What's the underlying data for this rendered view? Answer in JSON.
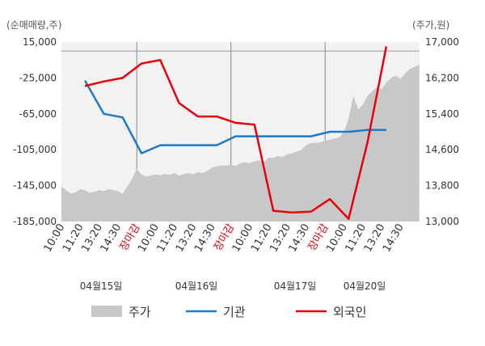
{
  "chart_data": {
    "type": "line",
    "left_unit": "(순매매량,주)",
    "right_unit": "(주가,원)",
    "left_axis": {
      "ylim": [
        -185000,
        15000
      ],
      "ticks": [
        "15,000",
        "-25,000",
        "-65,000",
        "-105,000",
        "-145,000",
        "-185,000"
      ],
      "tick_values": [
        15000,
        -25000,
        -65000,
        -105000,
        -145000,
        -185000
      ]
    },
    "right_axis": {
      "ylim": [
        13000,
        17000
      ],
      "ticks": [
        "17,000",
        "16,200",
        "15,400",
        "14,600",
        "13,800",
        "13,000"
      ],
      "tick_values": [
        17000,
        16200,
        15400,
        14600,
        13800,
        13000
      ]
    },
    "x_ticks": [
      "10:00",
      "11:20",
      "13:20",
      "14:30",
      "장마감",
      "10:00",
      "11:20",
      "13:20",
      "14:30",
      "장마감",
      "10:00",
      "11:20",
      "13:20",
      "14:30",
      "장마감",
      "10:00",
      "11:20",
      "13:20",
      "14:30"
    ],
    "close_label": "장마감",
    "dates": [
      "04월15일",
      "04월16일",
      "04월17일",
      "04월20일"
    ],
    "zero_line_value": 5000,
    "series": [
      {
        "name": "주가",
        "kind": "area",
        "color": "#c8c8c8",
        "x": [
          0,
          0.5,
          1,
          1.5,
          2,
          2.5,
          3,
          3.5,
          4,
          4.5,
          5,
          5.5,
          6,
          6.5,
          7,
          7.5,
          8,
          8.5,
          9,
          9.5,
          10,
          10.5,
          11,
          11.5,
          12,
          12.5,
          13,
          13.5,
          14,
          14.5,
          15,
          15.5,
          16,
          16.5,
          17,
          17.5,
          18,
          18.5,
          19,
          19.5,
          20,
          20.5,
          21,
          21.5,
          22,
          22.5,
          23,
          23.5,
          24,
          24.5,
          25,
          25.5,
          26,
          26.5,
          27,
          27.5,
          28,
          28.5,
          29,
          29.5,
          30,
          30.5,
          31,
          31.5,
          32,
          32.5,
          33,
          33.5,
          34,
          34.5,
          35,
          35.5,
          36,
          36.5,
          37,
          37.5,
          38
        ],
        "values": [
          13780,
          13700,
          13620,
          13650,
          13720,
          13700,
          13640,
          13660,
          13700,
          13680,
          13720,
          13700,
          13680,
          13620,
          13780,
          13950,
          14180,
          14050,
          14000,
          14020,
          14050,
          14030,
          14060,
          14040,
          14080,
          14020,
          14060,
          14080,
          14050,
          14100,
          14080,
          14130,
          14200,
          14230,
          14250,
          14240,
          14270,
          14240,
          14300,
          14320,
          14300,
          14340,
          14360,
          14330,
          14420,
          14420,
          14460,
          14440,
          14500,
          14520,
          14560,
          14600,
          14700,
          14750,
          14750,
          14770,
          14800,
          14820,
          14850,
          14880,
          15000,
          15300,
          15800,
          15500,
          15600,
          15800,
          15900,
          16000,
          15950,
          16100,
          16200,
          16250,
          16180,
          16300,
          16400,
          16450,
          16500
        ]
      },
      {
        "name": "기관",
        "kind": "line",
        "color": "#1e7ac8",
        "x": [
          1,
          2,
          3,
          4,
          5,
          6,
          7,
          8,
          9,
          10,
          11,
          12,
          13,
          14,
          15,
          16,
          17
        ],
        "values": [
          -28000,
          -65000,
          -69000,
          -109000,
          -100000,
          -100000,
          -100000,
          -100000,
          -90000,
          -90000,
          -90000,
          -90000,
          -90000,
          -85000,
          -85000,
          -83000,
          -83000
        ]
      },
      {
        "name": "외국인",
        "kind": "line",
        "color": "#e8000d",
        "x": [
          1,
          2,
          3,
          4,
          5,
          6,
          7,
          8,
          9,
          10,
          11,
          12,
          13,
          14,
          15,
          16,
          17
        ],
        "values": [
          -34000,
          -29000,
          -25000,
          -9000,
          -5000,
          -53000,
          -68000,
          -68000,
          -75000,
          -77000,
          -173000,
          -175000,
          -174000,
          -160000,
          -182000,
          -97000,
          10000
        ]
      }
    ]
  },
  "legend": [
    {
      "label": "주가",
      "color": "#c8c8c8",
      "shape": "box"
    },
    {
      "label": "기관",
      "color": "#1e7ac8",
      "shape": "line"
    },
    {
      "label": "외국인",
      "color": "#e8000d",
      "shape": "line"
    }
  ]
}
